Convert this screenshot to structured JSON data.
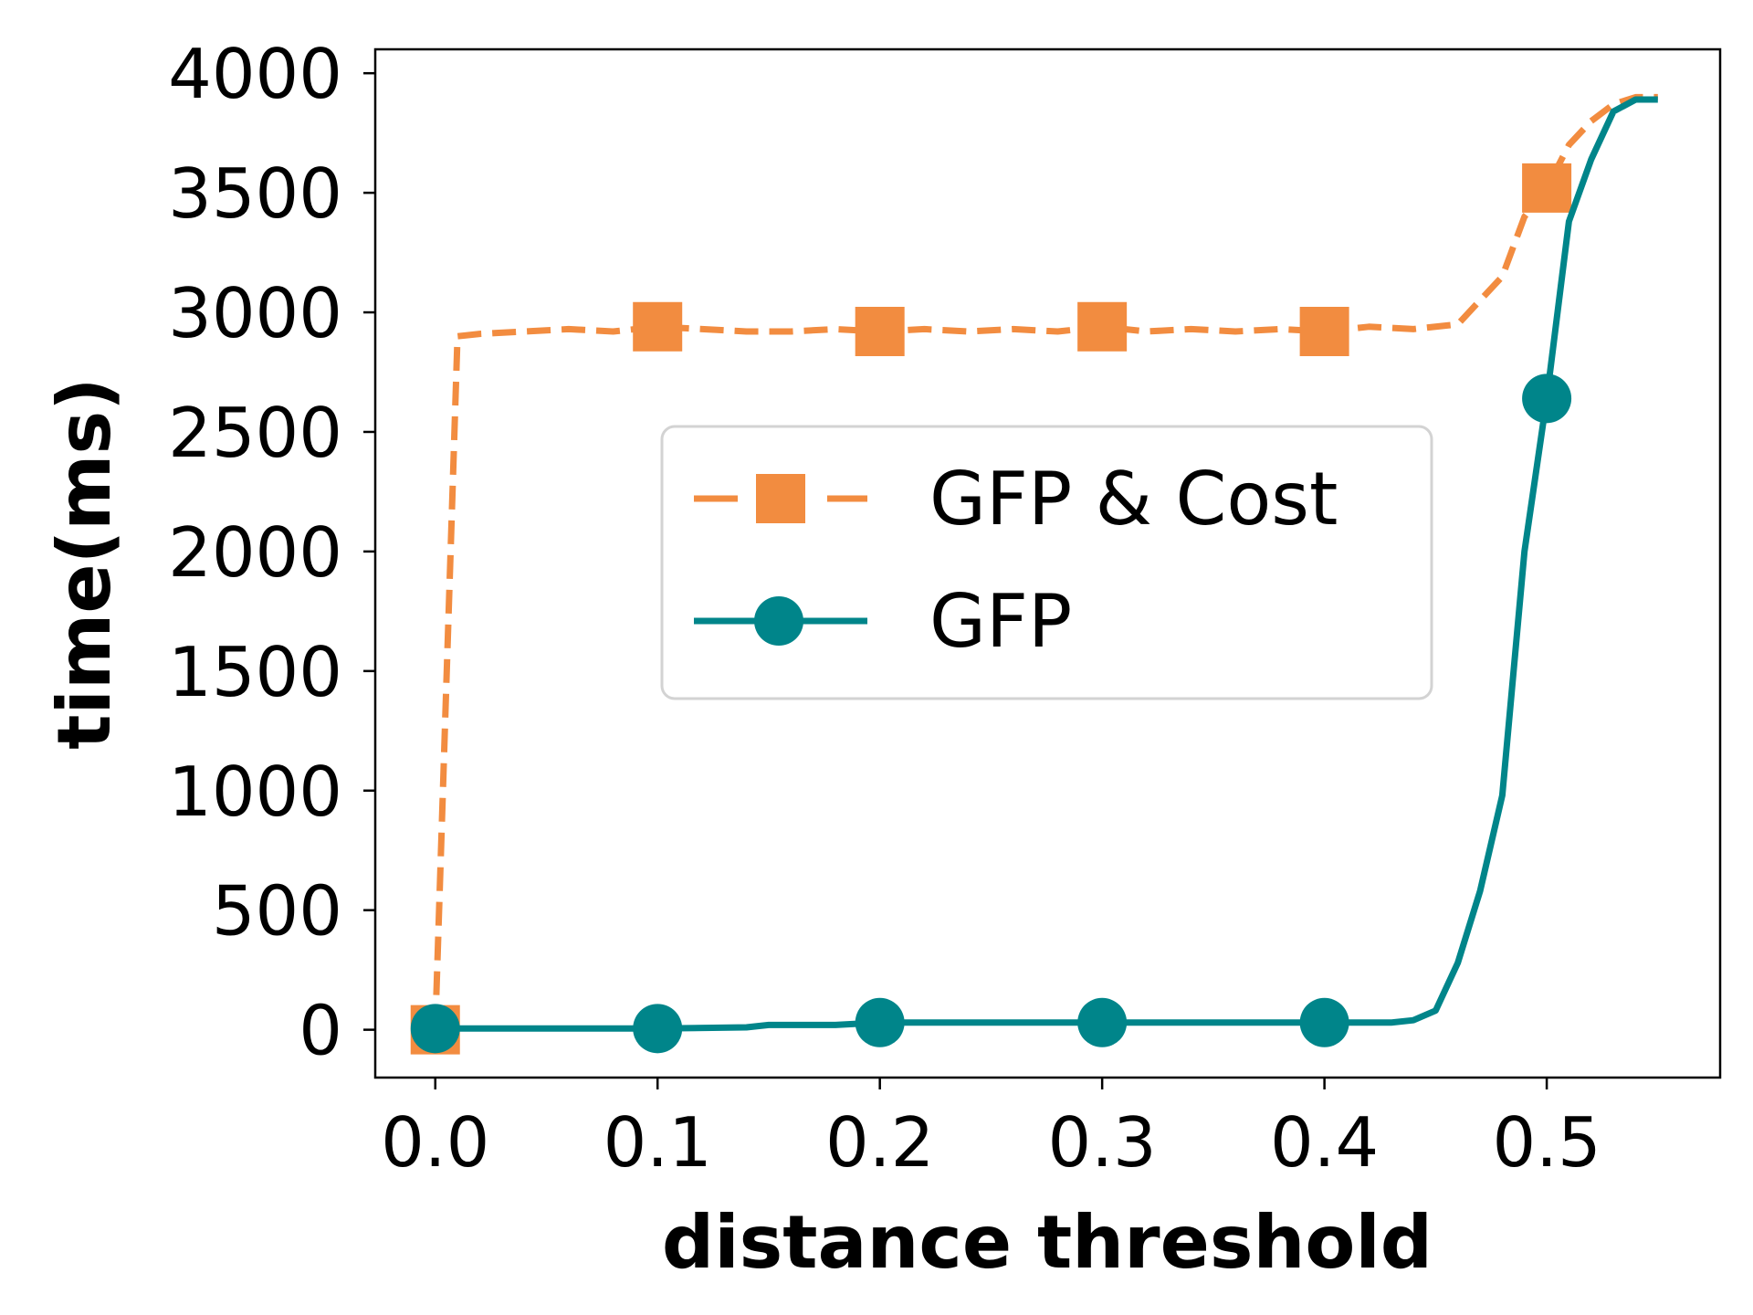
{
  "chart_data": {
    "type": "line",
    "xlabel": "distance threshold",
    "ylabel": "time(ms)",
    "xlim": [
      -0.027,
      0.578
    ],
    "ylim": [
      -200,
      4100
    ],
    "xticks": [
      0.0,
      0.1,
      0.2,
      0.3,
      0.4,
      0.5
    ],
    "xtick_labels": [
      "0.0",
      "0.1",
      "0.2",
      "0.3",
      "0.4",
      "0.5"
    ],
    "yticks": [
      0,
      500,
      1000,
      1500,
      2000,
      2500,
      3000,
      3500,
      4000
    ],
    "ytick_labels": [
      "0",
      "500",
      "1000",
      "1500",
      "2000",
      "2500",
      "3000",
      "3500",
      "4000"
    ],
    "grid": false,
    "legend_position": "center",
    "series": [
      {
        "name": "GFP & Cost",
        "color": "#F28C40",
        "style": "dashed",
        "marker": "square",
        "x": [
          0.0,
          0.01,
          0.02,
          0.04,
          0.06,
          0.08,
          0.1,
          0.12,
          0.14,
          0.16,
          0.18,
          0.2,
          0.22,
          0.24,
          0.26,
          0.28,
          0.3,
          0.32,
          0.34,
          0.36,
          0.38,
          0.4,
          0.42,
          0.44,
          0.46,
          0.48,
          0.49,
          0.5,
          0.51,
          0.52,
          0.53,
          0.54,
          0.55
        ],
        "y": [
          0,
          2900,
          2910,
          2920,
          2930,
          2920,
          2940,
          2930,
          2920,
          2920,
          2930,
          2920,
          2930,
          2920,
          2930,
          2920,
          2940,
          2920,
          2930,
          2920,
          2930,
          2920,
          2940,
          2930,
          2950,
          3150,
          3400,
          3520,
          3700,
          3800,
          3870,
          3900,
          3900
        ],
        "marker_indices": [
          0,
          6,
          11,
          16,
          21,
          27
        ]
      },
      {
        "name": "GFP",
        "color": "#00858A",
        "style": "solid",
        "marker": "circle",
        "x": [
          0.0,
          0.05,
          0.1,
          0.14,
          0.15,
          0.18,
          0.2,
          0.25,
          0.3,
          0.35,
          0.4,
          0.43,
          0.44,
          0.45,
          0.46,
          0.47,
          0.48,
          0.49,
          0.5,
          0.51,
          0.52,
          0.53,
          0.54,
          0.55
        ],
        "y": [
          5,
          5,
          5,
          10,
          20,
          20,
          30,
          30,
          30,
          30,
          30,
          30,
          40,
          80,
          280,
          580,
          980,
          2000,
          2640,
          3380,
          3640,
          3840,
          3890,
          3890
        ],
        "marker_indices": [
          0,
          2,
          6,
          8,
          10,
          18
        ]
      }
    ]
  }
}
